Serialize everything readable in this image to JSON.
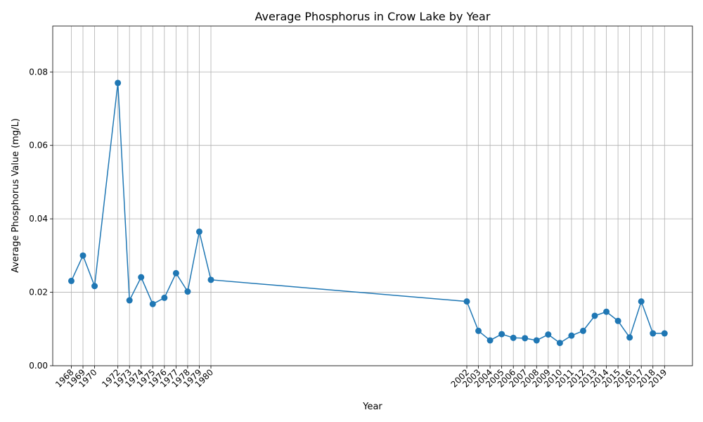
{
  "chart_data": {
    "type": "line",
    "title": "Average Phosphorus in Crow Lake by Year",
    "xlabel": "Year",
    "ylabel": "Average Phosphorus Value (mg/L)",
    "ylim": [
      0,
      0.0925
    ],
    "xlim": [
      1966.4,
      2021.4
    ],
    "yticks": [
      "0.00",
      "0.02",
      "0.04",
      "0.06",
      "0.08"
    ],
    "grid": true,
    "color": "#1f77b4",
    "x": [
      1968,
      1969,
      1970,
      1972,
      1973,
      1974,
      1975,
      1976,
      1977,
      1978,
      1979,
      1980,
      2002,
      2003,
      2004,
      2005,
      2006,
      2007,
      2008,
      2009,
      2010,
      2011,
      2012,
      2013,
      2014,
      2015,
      2016,
      2017,
      2018,
      2019
    ],
    "y": [
      0.0231,
      0.03,
      0.0217,
      0.077,
      0.0178,
      0.0241,
      0.0168,
      0.0185,
      0.0252,
      0.0202,
      0.0365,
      0.0234,
      0.0175,
      0.0095,
      0.0069,
      0.0086,
      0.0076,
      0.0075,
      0.0069,
      0.0085,
      0.0062,
      0.0082,
      0.0095,
      0.0136,
      0.0147,
      0.0122,
      0.0077,
      0.0175,
      0.0088,
      0.0088
    ]
  }
}
